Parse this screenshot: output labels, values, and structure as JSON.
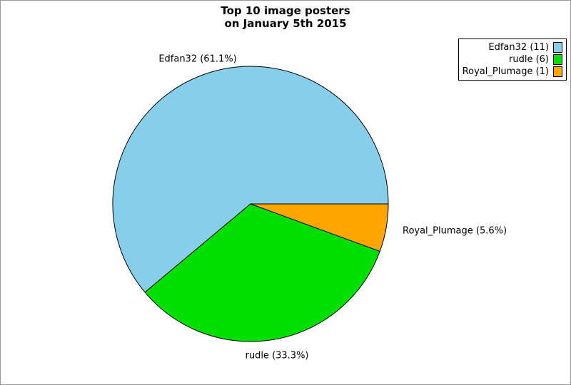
{
  "frame": {
    "background_color": "#ffffff",
    "border_color": "#999999"
  },
  "chart_data": {
    "type": "pie",
    "title": "Top 10 image posters",
    "subtitle": "on January 5th 2015",
    "start_angle_deg": 0,
    "direction": "counterclockwise",
    "legend_position": "top-right",
    "outline_color": "#000000",
    "slices": [
      {
        "name": "Edfan32",
        "count": 11,
        "percent": 61.1,
        "color": "#87CEEB",
        "wedge_label": "Edfan32 (61.1%)",
        "legend_label": "Edfan32 (11)"
      },
      {
        "name": "rudle",
        "count": 6,
        "percent": 33.3,
        "color": "#00E000",
        "wedge_label": "rudle (33.3%)",
        "legend_label": "rudle (6)"
      },
      {
        "name": "Royal_Plumage",
        "count": 1,
        "percent": 5.6,
        "color": "#FFA500",
        "wedge_label": "Royal_Plumage (5.6%)",
        "legend_label": "Royal_Plumage (1)"
      }
    ]
  }
}
